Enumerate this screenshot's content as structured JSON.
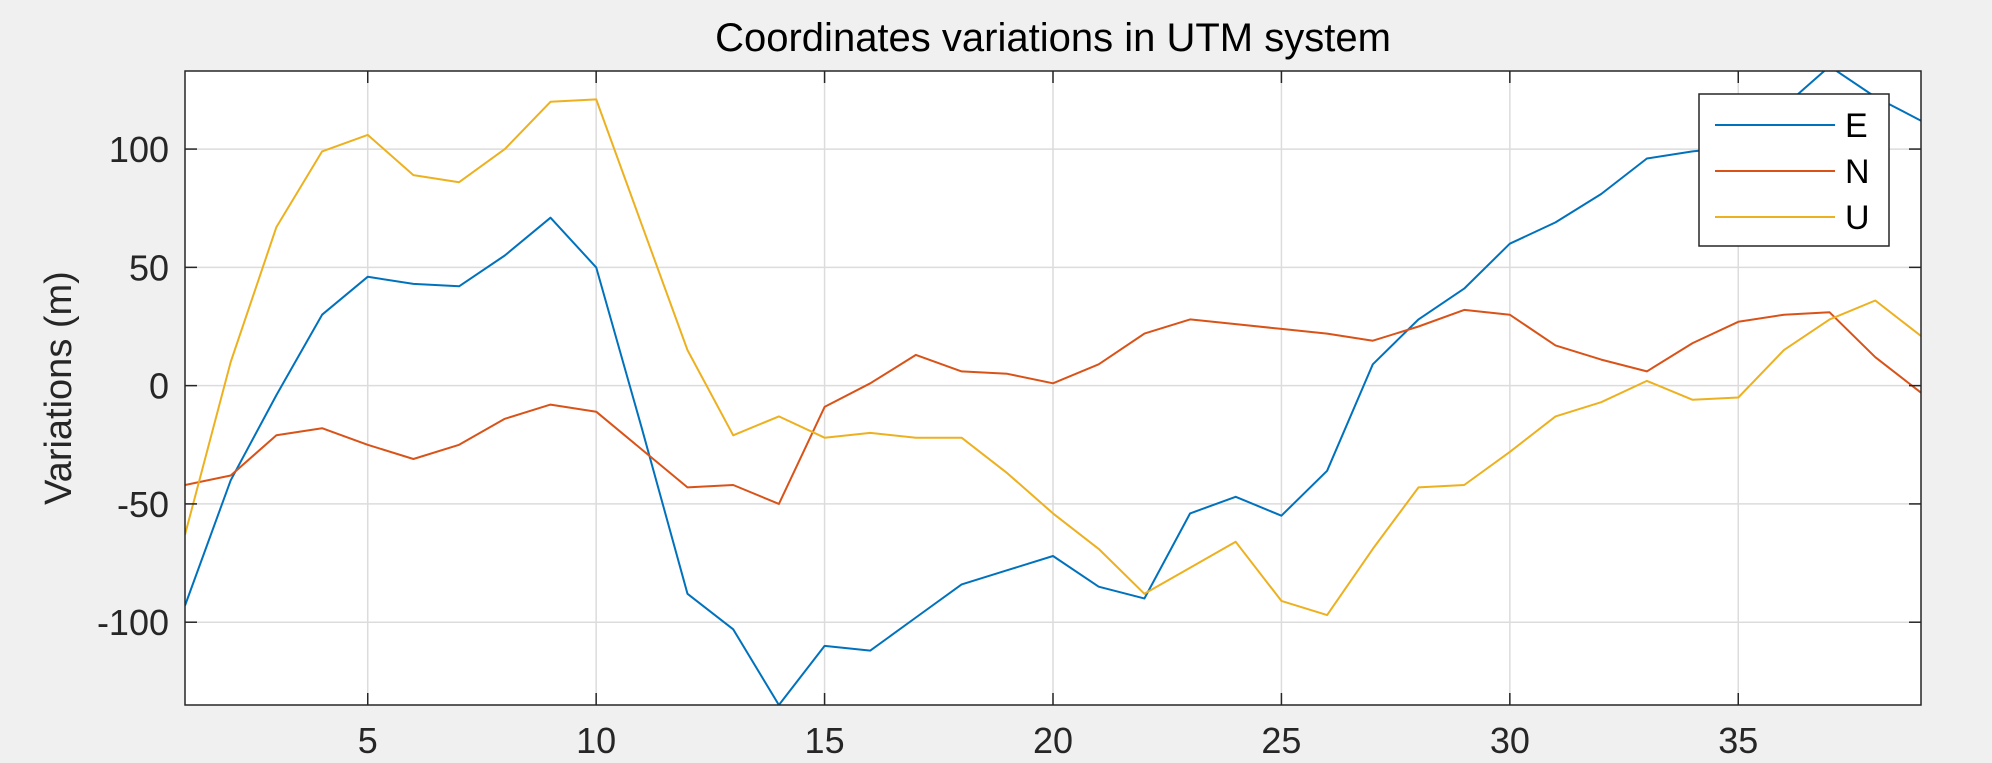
{
  "chart_data": {
    "type": "line",
    "title": "Coordinates variations in UTM system",
    "ylabel": "Variations (m)",
    "xlim": [
      1,
      39
    ],
    "ylim": [
      -135,
      133
    ],
    "xticks": [
      5,
      10,
      15,
      20,
      25,
      30,
      35
    ],
    "yticks": [
      -100,
      -50,
      0,
      50,
      100
    ],
    "grid": true,
    "legend": "top-right",
    "x": [
      1,
      2,
      3,
      4,
      5,
      6,
      7,
      8,
      9,
      10,
      11,
      12,
      13,
      14,
      15,
      16,
      17,
      18,
      19,
      20,
      21,
      22,
      23,
      24,
      25,
      26,
      27,
      28,
      29,
      30,
      31,
      32,
      33,
      34,
      35,
      36,
      37,
      38,
      39
    ],
    "series": [
      {
        "name": "E",
        "color": "#0072BD",
        "values": [
          -93,
          -40,
          -4,
          30,
          46,
          43,
          42,
          55,
          71,
          50,
          -18,
          -88,
          -103,
          -135,
          -110,
          -112,
          -98,
          -84,
          -78,
          -72,
          -85,
          -90,
          -54,
          -47,
          -55,
          -36,
          9,
          28,
          41,
          60,
          69,
          81,
          96,
          99,
          101,
          118,
          135,
          122,
          112
        ]
      },
      {
        "name": "N",
        "color": "#D95319",
        "values": [
          -42,
          -38,
          -21,
          -18,
          -25,
          -31,
          -25,
          -14,
          -8,
          -11,
          -27,
          -43,
          -42,
          -50,
          -9,
          1,
          13,
          6,
          5,
          1,
          9,
          22,
          28,
          26,
          24,
          22,
          19,
          25,
          32,
          30,
          17,
          11,
          6,
          18,
          27,
          30,
          31,
          12,
          -3
        ]
      },
      {
        "name": "U",
        "color": "#EDB120",
        "values": [
          -63,
          10,
          67,
          99,
          106,
          89,
          86,
          100,
          120,
          121,
          68,
          15,
          -21,
          -13,
          -22,
          -20,
          -22,
          -22,
          -37,
          -54,
          -69,
          -88,
          -77,
          -66,
          -91,
          -97,
          -69,
          -43,
          -42,
          -28,
          -13,
          -7,
          2,
          -6,
          -5,
          15,
          28,
          36,
          21
        ]
      }
    ]
  }
}
